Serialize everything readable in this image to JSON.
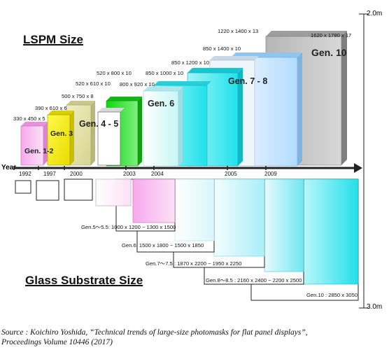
{
  "header": {
    "lspm_title": "LSPM Size",
    "glass_title": "Glass Substrate Size"
  },
  "axis": {
    "year_label": "Year",
    "years": [
      "1992",
      "1997",
      "2000",
      "2003",
      "2004",
      "2005",
      "2009"
    ],
    "scale_top": "2.0m",
    "scale_bottom": "3.0m"
  },
  "lspm_sizes": [
    "330 x 450 x 5",
    "390 x 610 x 6",
    "500 x 750 x 8",
    "520 x 610 x 10",
    "520 x 800 x 10",
    "800 x 920 x 10",
    "850 x 1000 x 10",
    "850 x 1200 x 10",
    "850 x 1400 x 10",
    "1220 x 1400 x 13",
    "1620 x 1780 x 17"
  ],
  "generation_labels": [
    "Gen. 1-2",
    "Gen. 3",
    "Gen. 4 - 5",
    "Gen. 6",
    "Gen. 7 - 8",
    "Gen. 10"
  ],
  "glass_sizes": [
    "Gen.5～5.5: 1000 x 1200 ~ 1300 x 1500",
    "Gen.6: 1500 x 1800 ~ 1500 x 1850",
    "Gen.7～7.5 : 1870 x 2200 ~ 1950 x 2250",
    "Gen.8～8.5 : 2160 x 2400 ~ 2200 x 2500",
    "Gen.10 : 2850 x 3050"
  ],
  "source": {
    "line1": "Source : Koichiro Yoshida, “Technical trends of large-size photomasks for flat panel displays”,",
    "line2": "Proceedings Volume 10446 (2017)"
  },
  "colors": {
    "gen12": "#f4a9ec",
    "gen3": "#f2ee1c",
    "gen45": "#e6e4a2",
    "gen45b": "#22dd22",
    "gen6": "#e6fbfb",
    "gen6b": "#22e6ee",
    "gen78": "#bfe4ff",
    "gen10": "#c6c6c6",
    "axis": "#222222"
  }
}
